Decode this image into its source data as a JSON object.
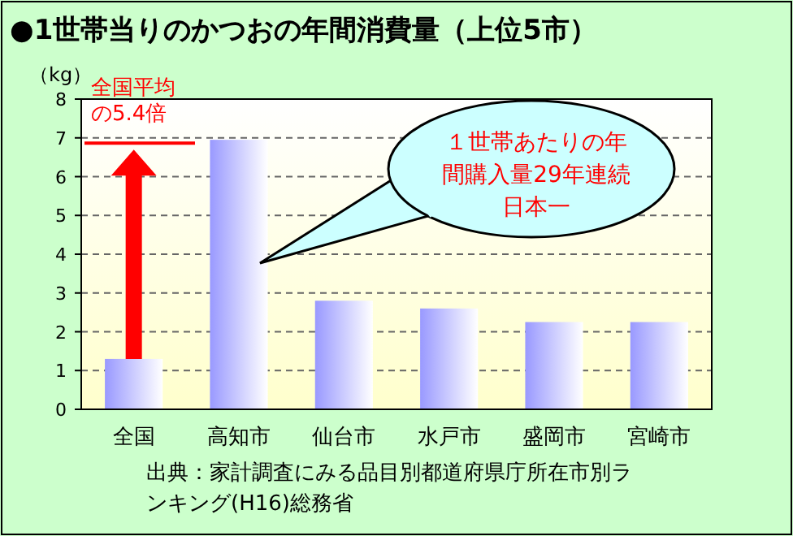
{
  "chart_data": {
    "type": "bar",
    "title": "●1世帯当りのかつおの年間消費量（上位5市）",
    "ylabel": "（kg）",
    "categories": [
      "全国",
      "高知市",
      "仙台市",
      "水戸市",
      "盛岡市",
      "宮崎市"
    ],
    "values": [
      1.3,
      6.95,
      2.8,
      2.6,
      2.25,
      2.25
    ],
    "color": "#9999ff",
    "ylim": [
      0,
      8
    ],
    "yticks": [
      0,
      1,
      2,
      3,
      4,
      5,
      6,
      7,
      8
    ],
    "grid": "y",
    "annotations": [
      "全国平均の5.4倍",
      "１世帯あたりの年間購入量29年連続日本一",
      "出典：家計調査にみる品目別都道府県庁所在市別ランキング(H16)総務省"
    ]
  }
}
